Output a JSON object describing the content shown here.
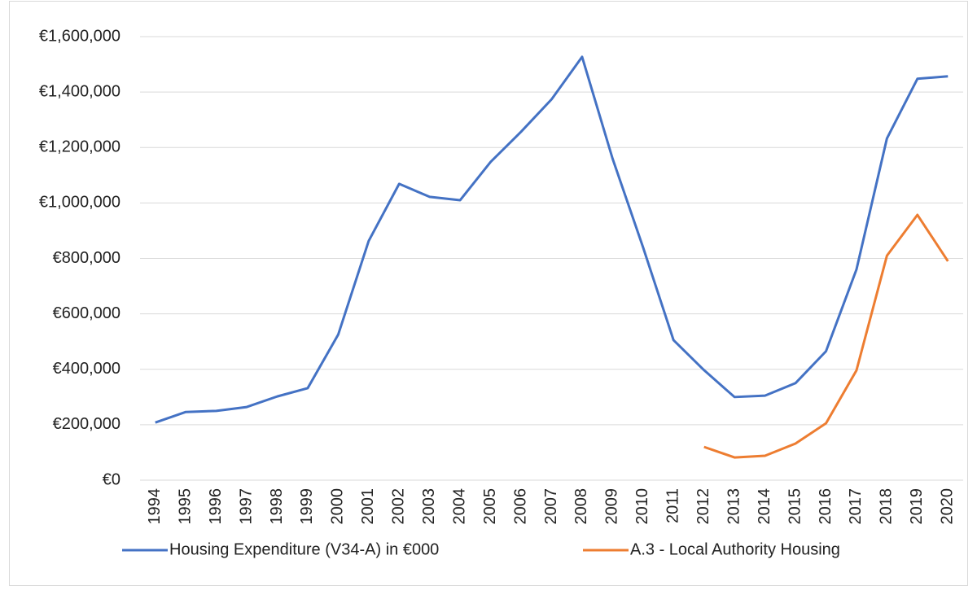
{
  "chart_data": {
    "type": "line",
    "categories": [
      "1994",
      "1995",
      "1996",
      "1997",
      "1998",
      "1999",
      "2000",
      "2001",
      "2002",
      "2003",
      "2004",
      "2005",
      "2006",
      "2007",
      "2008",
      "2009",
      "2010",
      "2011",
      "2012",
      "2013",
      "2014",
      "2015",
      "2016",
      "2017",
      "2018",
      "2019",
      "2020"
    ],
    "series": [
      {
        "name": "Housing Expenditure (V34-A) in €000",
        "color": "#4472c4",
        "values": [
          208000,
          246000,
          250000,
          264000,
          302000,
          332000,
          525000,
          863000,
          1069000,
          1022000,
          1010000,
          1148000,
          1257000,
          1374000,
          1527000,
          1160000,
          840000,
          505000,
          397000,
          300000,
          305000,
          350000,
          465000,
          760000,
          1233000,
          1448000,
          1457000
        ]
      },
      {
        "name": "A.3 - Local Authority Housing",
        "color": "#ed7d31",
        "values": [
          null,
          null,
          null,
          null,
          null,
          null,
          null,
          null,
          null,
          null,
          null,
          null,
          null,
          null,
          null,
          null,
          null,
          null,
          120000,
          82000,
          88000,
          132000,
          205000,
          396000,
          810000,
          957000,
          790000
        ]
      }
    ],
    "ylim": [
      0,
      1600000
    ],
    "yticks": [
      {
        "value": 0,
        "label": "€0"
      },
      {
        "value": 200000,
        "label": "€200,000"
      },
      {
        "value": 400000,
        "label": "€400,000"
      },
      {
        "value": 600000,
        "label": "€600,000"
      },
      {
        "value": 800000,
        "label": "€800,000"
      },
      {
        "value": 1000000,
        "label": "€1,000,000"
      },
      {
        "value": 1200000,
        "label": "€1,200,000"
      },
      {
        "value": 1400000,
        "label": "€1,400,000"
      },
      {
        "value": 1600000,
        "label": "€1,600,000"
      }
    ],
    "grid": true,
    "legend": "bottom"
  }
}
